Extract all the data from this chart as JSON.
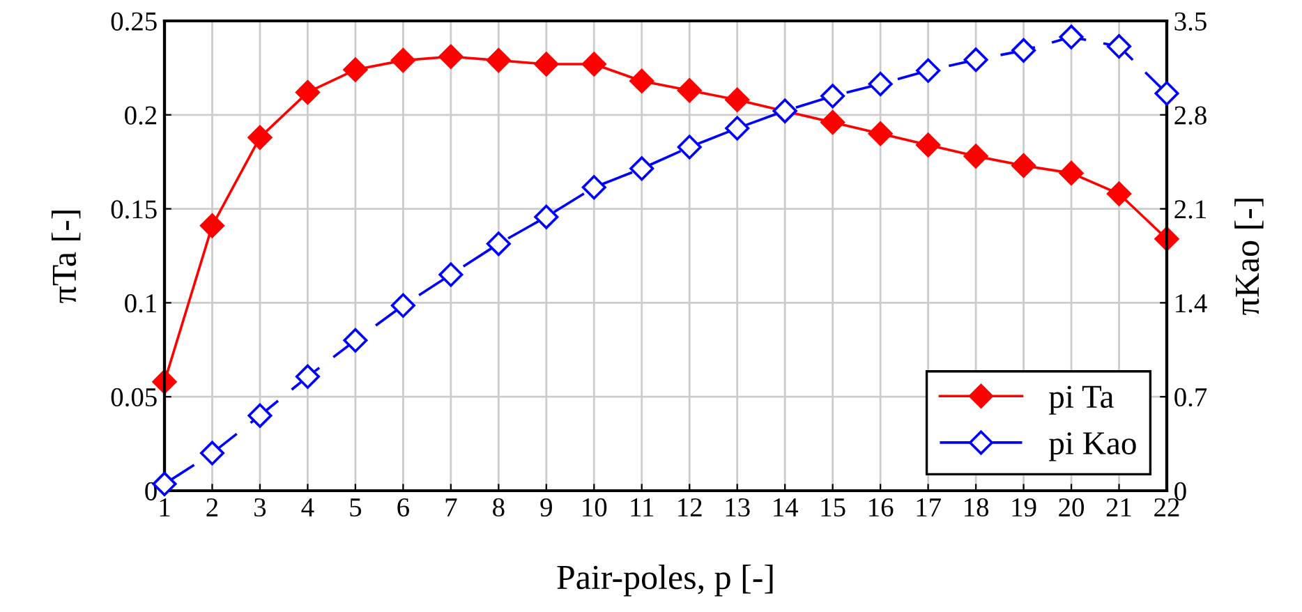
{
  "chart_data": {
    "type": "line",
    "xlabel": "Pair-poles, p [-]",
    "ylabel": "πTa [-]",
    "y2label": "πKao [-]",
    "x": [
      1,
      2,
      3,
      4,
      5,
      6,
      7,
      8,
      9,
      10,
      11,
      12,
      13,
      14,
      15,
      16,
      17,
      18,
      19,
      20,
      21,
      22
    ],
    "series": [
      {
        "name": "pi Ta",
        "color": "#ff0000",
        "marker": "diamond",
        "line_style": "solid",
        "values": [
          0.058,
          0.141,
          0.188,
          0.212,
          0.224,
          0.229,
          0.231,
          0.229,
          0.227,
          0.227,
          0.218,
          0.213,
          0.208,
          0.202,
          0.196,
          0.19,
          0.184,
          0.178,
          0.173,
          0.169,
          0.158,
          0.134
        ]
      },
      {
        "name": "pi Kao",
        "color": "#0000ff",
        "marker": "diamond",
        "line_style": "dashed",
        "axis": "y2",
        "values": [
          0.05,
          0.28,
          0.56,
          0.85,
          1.12,
          1.38,
          1.61,
          1.84,
          2.04,
          2.26,
          2.4,
          2.56,
          2.7,
          2.83,
          2.94,
          3.03,
          3.13,
          3.21,
          3.28,
          3.38,
          3.31,
          2.96
        ]
      }
    ],
    "xlim": [
      1,
      22
    ],
    "xticks": [
      1,
      2,
      3,
      4,
      5,
      6,
      7,
      8,
      9,
      10,
      11,
      12,
      13,
      14,
      15,
      16,
      17,
      18,
      19,
      20,
      21,
      22
    ],
    "ylim": [
      0,
      0.25
    ],
    "yticks": [
      0,
      0.05,
      0.1,
      0.15,
      0.2,
      0.25
    ],
    "y2lim": [
      0,
      3.5
    ],
    "y2ticks": [
      0,
      0.7,
      1.4,
      2.1,
      2.8,
      3.5
    ],
    "grid": true,
    "legend": "bottom right"
  }
}
